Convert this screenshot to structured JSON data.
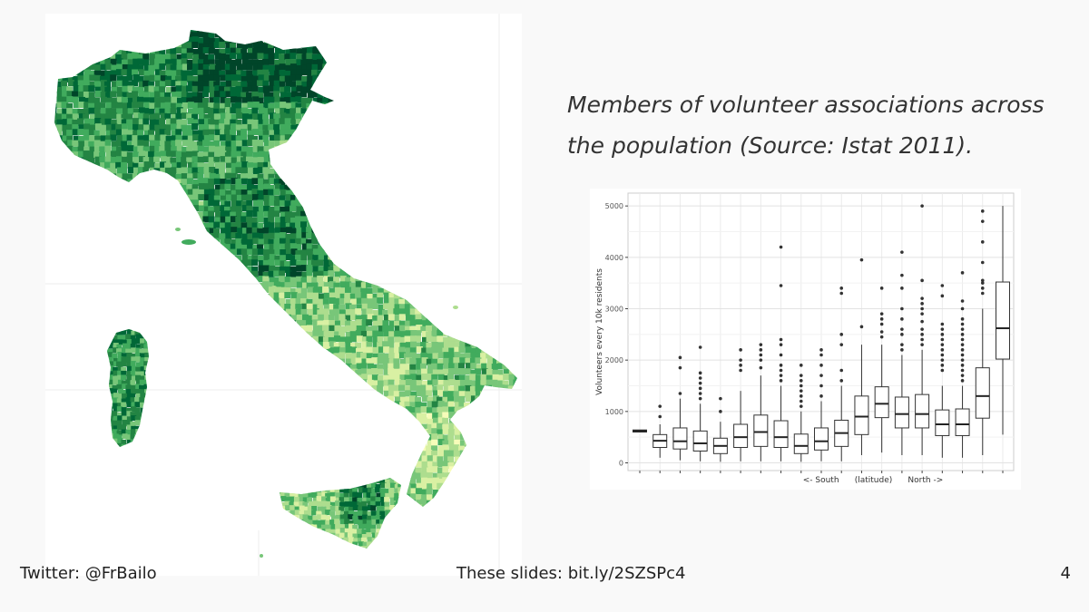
{
  "slide": {
    "caption": "Members of volunteer associations across the population (Source: Istat 2011).",
    "footer_left": "Twitter: @FrBailo",
    "footer_center": "These slides: bit.ly/2SZSPc4",
    "page_number": "4"
  },
  "map": {
    "palette": [
      "#f7fcb9",
      "#d9f0a3",
      "#addd8e",
      "#78c679",
      "#41ab5d",
      "#238443",
      "#006837",
      "#004529"
    ]
  },
  "chart_data": {
    "type": "box",
    "xlabel": "<- South      (latitude)      North ->",
    "ylabel": "Volunteers every 10k residents",
    "ylim": [
      -150,
      5250
    ],
    "yticks": [
      0,
      1000,
      2000,
      3000,
      4000,
      5000
    ],
    "grid": true,
    "groups": [
      {
        "q1": 600,
        "median": 620,
        "q3": 640,
        "lo": 600,
        "hi": 640,
        "outliers": []
      },
      {
        "q1": 300,
        "median": 430,
        "q3": 550,
        "lo": 100,
        "hi": 750,
        "outliers": [
          900,
          1100
        ]
      },
      {
        "q1": 270,
        "median": 420,
        "q3": 680,
        "lo": 50,
        "hi": 1250,
        "outliers": [
          1350,
          1850,
          2050
        ]
      },
      {
        "q1": 230,
        "median": 380,
        "q3": 620,
        "lo": 30,
        "hi": 1150,
        "outliers": [
          1250,
          1350,
          1450,
          1550,
          1650,
          1750,
          2250
        ]
      },
      {
        "q1": 180,
        "median": 330,
        "q3": 480,
        "lo": 20,
        "hi": 800,
        "outliers": [
          1000,
          1250
        ]
      },
      {
        "q1": 300,
        "median": 500,
        "q3": 750,
        "lo": 30,
        "hi": 1400,
        "outliers": [
          1800,
          1900,
          2000,
          2200
        ]
      },
      {
        "q1": 320,
        "median": 600,
        "q3": 930,
        "lo": 30,
        "hi": 1700,
        "outliers": [
          1850,
          2000,
          2100,
          2200,
          2300
        ]
      },
      {
        "q1": 300,
        "median": 500,
        "q3": 820,
        "lo": 30,
        "hi": 1500,
        "outliers": [
          1600,
          1700,
          1800,
          1900,
          2100,
          2300,
          2400,
          3450,
          4200
        ]
      },
      {
        "q1": 180,
        "median": 330,
        "q3": 560,
        "lo": 20,
        "hi": 1000,
        "outliers": [
          1100,
          1200,
          1300,
          1400,
          1500,
          1600,
          1700,
          1900
        ]
      },
      {
        "q1": 250,
        "median": 420,
        "q3": 680,
        "lo": 30,
        "hi": 1200,
        "outliers": [
          1300,
          1500,
          1700,
          1900,
          2100,
          2200
        ]
      },
      {
        "q1": 320,
        "median": 580,
        "q3": 830,
        "lo": 30,
        "hi": 1500,
        "outliers": [
          1600,
          1800,
          2300,
          2500,
          3300,
          3400
        ]
      },
      {
        "q1": 550,
        "median": 900,
        "q3": 1300,
        "lo": 150,
        "hi": 2300,
        "outliers": [
          2650,
          3950
        ]
      },
      {
        "q1": 880,
        "median": 1150,
        "q3": 1480,
        "lo": 200,
        "hi": 2300,
        "outliers": [
          2450,
          2550,
          2700,
          2800,
          2900,
          3400
        ]
      },
      {
        "q1": 680,
        "median": 950,
        "q3": 1280,
        "lo": 150,
        "hi": 2100,
        "outliers": [
          2200,
          2300,
          2500,
          2600,
          2800,
          3000,
          3400,
          3650,
          4100
        ]
      },
      {
        "q1": 680,
        "median": 950,
        "q3": 1330,
        "lo": 150,
        "hi": 2200,
        "outliers": [
          2300,
          2400,
          2500,
          2600,
          2750,
          2900,
          3000,
          3100,
          3200,
          3550,
          5000
        ]
      },
      {
        "q1": 530,
        "median": 750,
        "q3": 1030,
        "lo": 100,
        "hi": 1500,
        "outliers": [
          1800,
          1900,
          2000,
          2100,
          2200,
          2300,
          2400,
          2500,
          2600,
          2700,
          3250,
          3450
        ]
      },
      {
        "q1": 530,
        "median": 750,
        "q3": 1050,
        "lo": 100,
        "hi": 1500,
        "outliers": [
          1600,
          1700,
          1800,
          1900,
          2000,
          2100,
          2200,
          2300,
          2400,
          2500,
          2600,
          2700,
          2800,
          3000,
          3150,
          3700
        ]
      },
      {
        "q1": 870,
        "median": 1300,
        "q3": 1850,
        "lo": 150,
        "hi": 3000,
        "outliers": [
          3300,
          3400,
          3500,
          3550,
          3900,
          4300,
          4700,
          4900
        ]
      },
      {
        "q1": 2020,
        "median": 2620,
        "q3": 3520,
        "lo": 550,
        "hi": 5000,
        "outliers": []
      }
    ]
  }
}
